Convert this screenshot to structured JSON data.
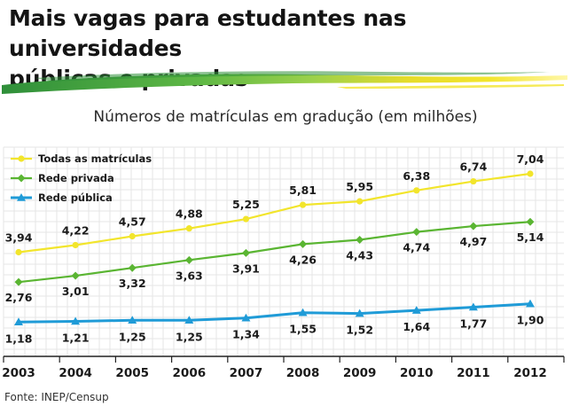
{
  "title_line1": "Mais vagas para estudantes nas universidades",
  "title_line2": "públicas e privadas",
  "source": "Fonte: INEP/Censup",
  "chart_data": {
    "type": "line",
    "title": "Números de matrículas em gradução (em milhões)",
    "categories": [
      "2003",
      "2004",
      "2005",
      "2006",
      "2007",
      "2008",
      "2009",
      "2010",
      "2011",
      "2012"
    ],
    "ylim": [
      0,
      8
    ],
    "grid": true,
    "legend": "top-left",
    "series": [
      {
        "name": "Todas as matrículas",
        "color": "#f2e52c",
        "marker": "circle",
        "values": [
          3.94,
          4.22,
          4.57,
          4.88,
          5.25,
          5.81,
          5.95,
          6.38,
          6.74,
          7.04
        ],
        "labels": [
          "3,94",
          "4,22",
          "4,57",
          "4,88",
          "5,25",
          "5,81",
          "5,95",
          "6,38",
          "6,74",
          "7,04"
        ]
      },
      {
        "name": "Rede privada",
        "color": "#5ab532",
        "marker": "diamond",
        "values": [
          2.76,
          3.01,
          3.32,
          3.63,
          3.91,
          4.26,
          4.43,
          4.74,
          4.97,
          5.14
        ],
        "labels": [
          "2,76",
          "3,01",
          "3,32",
          "3,63",
          "3,91",
          "4,26",
          "4,43",
          "4,74",
          "4,97",
          "5,14"
        ]
      },
      {
        "name": "Rede pública",
        "color": "#1f9bd7",
        "marker": "triangle",
        "values": [
          1.18,
          1.21,
          1.25,
          1.25,
          1.34,
          1.55,
          1.52,
          1.64,
          1.77,
          1.9
        ],
        "labels": [
          "1,18",
          "1,21",
          "1,25",
          "1,25",
          "1,34",
          "1,55",
          "1,52",
          "1,64",
          "1,77",
          "1,90"
        ]
      }
    ]
  }
}
